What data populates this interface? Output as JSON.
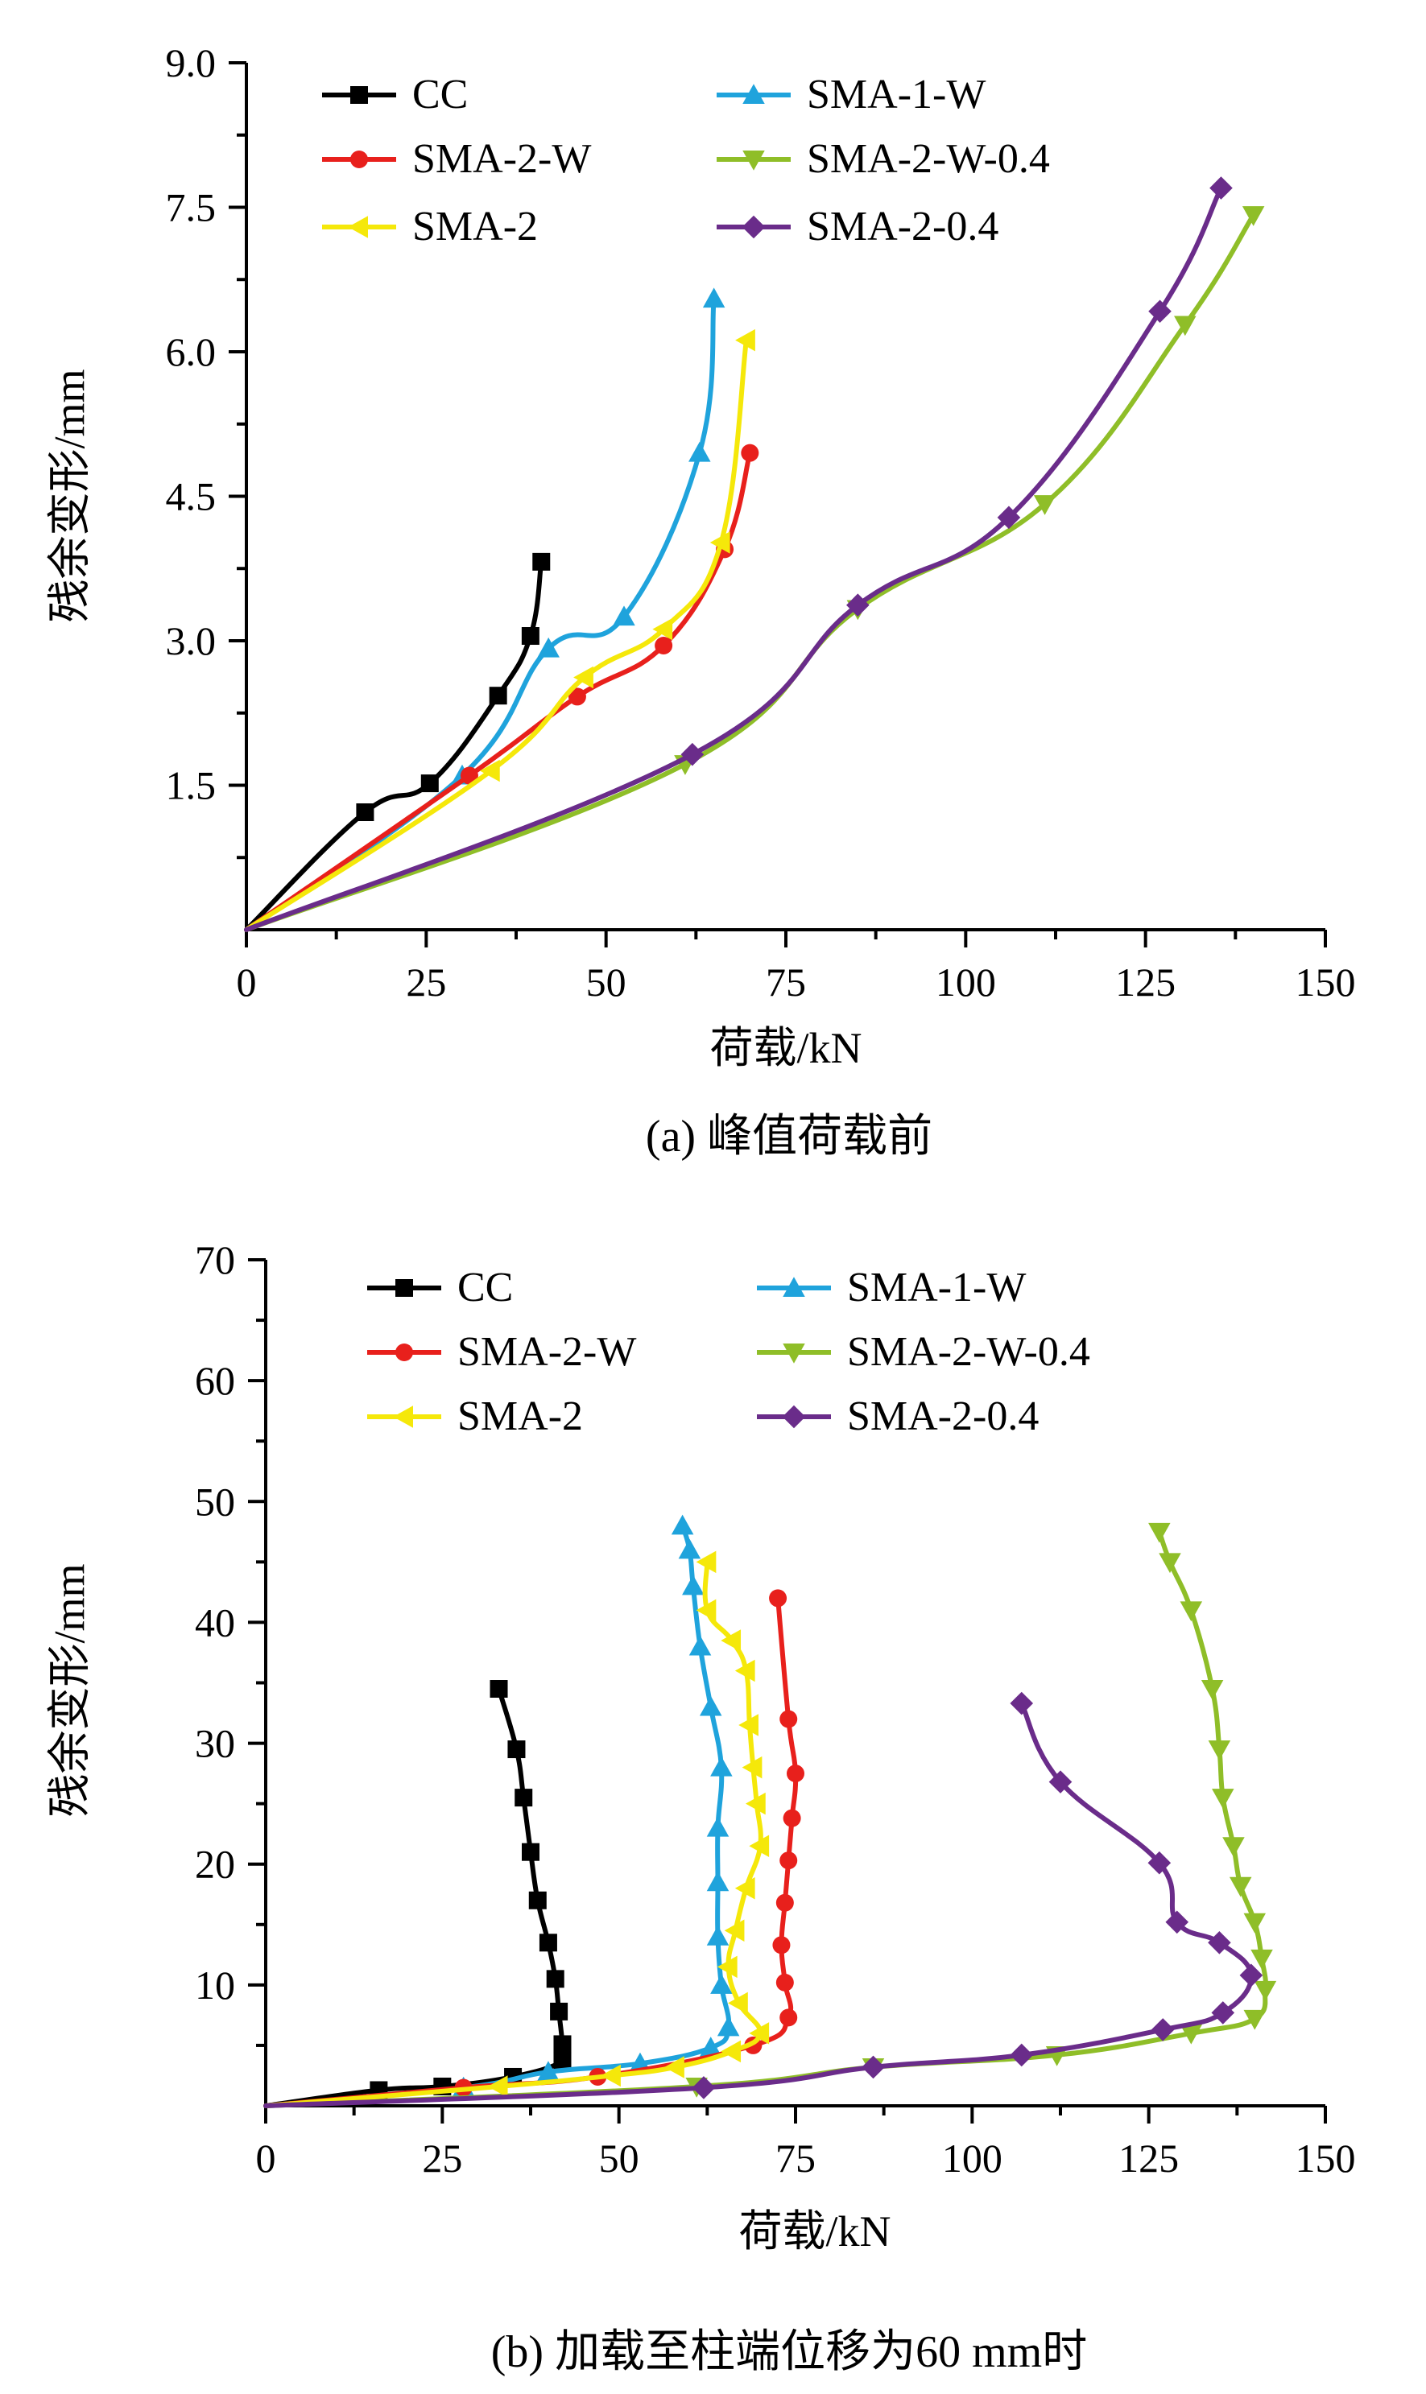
{
  "chart_data": [
    {
      "type": "line",
      "caption": "(a)  峰值荷载前",
      "xlabel": "荷载/kN",
      "ylabel": "残余变形/mm",
      "xlim": [
        0,
        150
      ],
      "ylim": [
        0,
        9.0
      ],
      "xticks": [
        0,
        25,
        50,
        75,
        100,
        125,
        150
      ],
      "yticks": [
        1.5,
        3.0,
        4.5,
        6.0,
        7.5,
        9.0
      ],
      "xtick_labels": [
        "0",
        "25",
        "50",
        "75",
        "100",
        "125",
        "150"
      ],
      "ytick_labels": [
        "1.5",
        "3.0",
        "4.5",
        "6.0",
        "7.5",
        "9.0"
      ],
      "legend_position": "top",
      "series": [
        {
          "name": "CC",
          "color": "#000000",
          "marker": "square",
          "x": [
            0,
            16.5,
            25.5,
            35,
            39.5,
            41
          ],
          "y": [
            0,
            1.22,
            1.52,
            2.43,
            3.05,
            3.82
          ]
        },
        {
          "name": "SMA-1-W",
          "color": "#1fa3dc",
          "marker": "triangle-up",
          "x": [
            0,
            30,
            42,
            52.5,
            63,
            65
          ],
          "y": [
            0,
            1.6,
            2.92,
            3.25,
            4.95,
            6.55
          ]
        },
        {
          "name": "SMA-2-W",
          "color": "#e8201c",
          "marker": "circle",
          "x": [
            0,
            31,
            46,
            58,
            66.5,
            70
          ],
          "y": [
            0,
            1.6,
            2.42,
            2.95,
            3.95,
            4.95
          ]
        },
        {
          "name": "SMA-2-W-0.4",
          "color": "#8fbe28",
          "marker": "triangle-down",
          "x": [
            0,
            61,
            85,
            111,
            130.5,
            140
          ],
          "y": [
            0,
            1.72,
            3.33,
            4.42,
            6.28,
            7.42
          ]
        },
        {
          "name": "SMA-2",
          "color": "#f5e80a",
          "marker": "triangle-left",
          "x": [
            0,
            34,
            47,
            58,
            66,
            69.5
          ],
          "y": [
            0,
            1.65,
            2.62,
            3.12,
            4.02,
            6.12
          ]
        },
        {
          "name": "SMA-2-0.4",
          "color": "#6a2c8a",
          "marker": "diamond",
          "x": [
            0,
            62,
            85,
            106,
            127,
            135.5
          ],
          "y": [
            0,
            1.82,
            3.37,
            4.28,
            6.42,
            7.7
          ]
        }
      ]
    },
    {
      "type": "line",
      "caption": "(b) 加载至柱端位移为60 mm时",
      "xlabel": "荷载/kN",
      "ylabel": "残余变形/mm",
      "xlim": [
        0,
        150
      ],
      "ylim": [
        0,
        70
      ],
      "xticks": [
        0,
        25,
        50,
        75,
        100,
        125,
        150
      ],
      "yticks": [
        10,
        20,
        30,
        40,
        50,
        60,
        70
      ],
      "xtick_labels": [
        "0",
        "25",
        "50",
        "75",
        "100",
        "125",
        "150"
      ],
      "ytick_labels": [
        "10",
        "20",
        "30",
        "40",
        "50",
        "60",
        "70"
      ],
      "legend_position": "top",
      "series": [
        {
          "name": "CC",
          "color": "#000000",
          "marker": "square",
          "x": [
            0,
            16,
            25,
            35,
            42,
            42,
            41.5,
            41,
            40,
            38.5,
            37.5,
            36.5,
            35.5,
            33
          ],
          "y": [
            0,
            1.3,
            1.6,
            2.4,
            3.7,
            5.1,
            7.8,
            10.5,
            13.5,
            17,
            21,
            25.5,
            29.5,
            34.5
          ]
        },
        {
          "name": "SMA-1-W",
          "color": "#1fa3dc",
          "marker": "triangle-up",
          "x": [
            0,
            28,
            40,
            53,
            63,
            65.5,
            64.5,
            64,
            64,
            64,
            64.5,
            63,
            61.5,
            60.5,
            60,
            59
          ],
          "y": [
            0,
            1.5,
            2.8,
            3.5,
            4.8,
            6.5,
            10,
            14,
            18.5,
            23,
            28,
            33,
            38,
            43,
            46,
            48
          ]
        },
        {
          "name": "SMA-2-W",
          "color": "#e8201c",
          "marker": "circle",
          "x": [
            0,
            28,
            47,
            69,
            74,
            73.5,
            73,
            73.5,
            74,
            74.5,
            75,
            74,
            72.5
          ],
          "y": [
            0,
            1.5,
            2.4,
            5.0,
            7.3,
            10.2,
            13.3,
            16.8,
            20.3,
            23.8,
            27.5,
            32,
            42
          ]
        },
        {
          "name": "SMA-2-W-0.4",
          "color": "#8fbe28",
          "marker": "triangle-down",
          "x": [
            0,
            61,
            86,
            112,
            131,
            140,
            141.5,
            141,
            140,
            138,
            137,
            135.5,
            135,
            134,
            131,
            128,
            126.5
          ],
          "y": [
            0,
            1.6,
            3.2,
            4.2,
            6.0,
            7.2,
            9.6,
            12.2,
            15.2,
            18.2,
            21.5,
            25.5,
            29.5,
            34.5,
            41,
            45,
            47.5
          ]
        },
        {
          "name": "SMA-2",
          "color": "#f5e80a",
          "marker": "triangle-left",
          "x": [
            0,
            33,
            49,
            58,
            66,
            70,
            67,
            65.5,
            66.5,
            68,
            70,
            69.5,
            69,
            68.5,
            68,
            66,
            62.5,
            62.5
          ],
          "y": [
            0,
            1.6,
            2.5,
            3.2,
            4.5,
            6.0,
            8.5,
            11.5,
            14.5,
            18,
            21.5,
            25,
            28,
            31.5,
            36,
            38.5,
            41,
            45
          ]
        },
        {
          "name": "SMA-2-0.4",
          "color": "#6a2c8a",
          "marker": "diamond",
          "x": [
            0,
            62,
            86,
            107,
            127,
            135.5,
            139.5,
            135,
            129,
            126.5,
            112.5,
            107
          ],
          "y": [
            0,
            1.5,
            3.2,
            4.2,
            6.3,
            7.7,
            10.8,
            13.5,
            15.2,
            20.1,
            26.8,
            33.3
          ]
        }
      ]
    }
  ]
}
